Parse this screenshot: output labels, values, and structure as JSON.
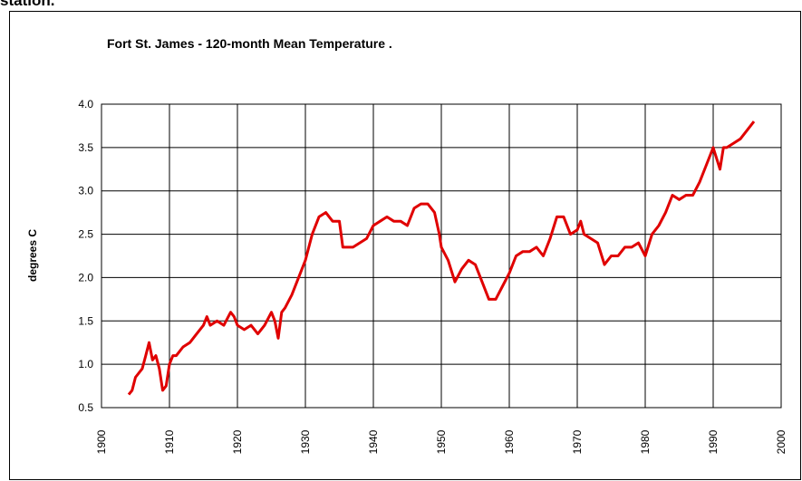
{
  "page_heading": "station.",
  "chart_data": {
    "type": "line",
    "title": "Fort St. James  - 120-month Mean Temperature  .",
    "y_label": "degrees C",
    "xlim": [
      1900,
      2000
    ],
    "xticks": [
      1900,
      1910,
      1920,
      1930,
      1940,
      1950,
      1960,
      1970,
      1980,
      1990,
      2000
    ],
    "ylim": [
      0.5,
      4.0
    ],
    "yticks": [
      0.5,
      {
        "value": 1.0,
        "label": "1.0"
      },
      1.5,
      {
        "value": 2.0,
        "label": "2.0"
      },
      2.5,
      {
        "value": 3.0,
        "label": "3.0"
      },
      3.5,
      {
        "value": 4.0,
        "label": "4.0"
      }
    ],
    "grid": true,
    "series": [
      {
        "color": "#e00000",
        "x": [
          1904,
          1904.5,
          1905,
          1906,
          1906.5,
          1907,
          1907.5,
          1908,
          1908.5,
          1909,
          1909.5,
          1910,
          1910.5,
          1911,
          1912,
          1913,
          1914,
          1915,
          1915.5,
          1916,
          1917,
          1918,
          1919,
          1919.5,
          1920,
          1921,
          1922,
          1923,
          1924,
          1925,
          1925.5,
          1926,
          1926.5,
          1927,
          1928,
          1929,
          1930,
          1931,
          1932,
          1933,
          1934,
          1935,
          1935.5,
          1936,
          1937,
          1938,
          1939,
          1940,
          1941,
          1942,
          1943,
          1944,
          1945,
          1946,
          1947,
          1948,
          1949,
          1949.7,
          1950,
          1951,
          1952,
          1953,
          1954,
          1955,
          1956,
          1957,
          1958,
          1959,
          1960,
          1961,
          1962,
          1963,
          1964,
          1965,
          1966,
          1967,
          1968,
          1969,
          1970,
          1970.5,
          1971,
          1972,
          1973,
          1974,
          1975,
          1976,
          1977,
          1978,
          1979,
          1980,
          1981,
          1982,
          1983,
          1984,
          1985,
          1986,
          1987,
          1988,
          1989,
          1990,
          1991,
          1991.5,
          1992,
          1993,
          1994,
          1995,
          1996
        ],
        "values": [
          0.65,
          0.7,
          0.85,
          0.95,
          1.1,
          1.25,
          1.05,
          1.1,
          0.95,
          0.7,
          0.75,
          1.0,
          1.1,
          1.1,
          1.2,
          1.25,
          1.35,
          1.45,
          1.55,
          1.45,
          1.5,
          1.45,
          1.6,
          1.55,
          1.45,
          1.4,
          1.45,
          1.35,
          1.45,
          1.6,
          1.5,
          1.3,
          1.6,
          1.65,
          1.8,
          2.0,
          2.2,
          2.5,
          2.7,
          2.75,
          2.65,
          2.65,
          2.35,
          2.35,
          2.35,
          2.4,
          2.45,
          2.6,
          2.65,
          2.7,
          2.65,
          2.65,
          2.6,
          2.8,
          2.85,
          2.85,
          2.75,
          2.5,
          2.35,
          2.2,
          1.95,
          2.1,
          2.2,
          2.15,
          1.95,
          1.75,
          1.75,
          1.9,
          2.05,
          2.25,
          2.3,
          2.3,
          2.35,
          2.25,
          2.45,
          2.7,
          2.7,
          2.5,
          2.55,
          2.65,
          2.5,
          2.45,
          2.4,
          2.15,
          2.25,
          2.25,
          2.35,
          2.35,
          2.4,
          2.25,
          2.5,
          2.6,
          2.75,
          2.95,
          2.9,
          2.95,
          2.95,
          3.1,
          3.3,
          3.5,
          3.25,
          3.5,
          3.5,
          3.55,
          3.6,
          3.7,
          3.8
        ]
      }
    ]
  }
}
